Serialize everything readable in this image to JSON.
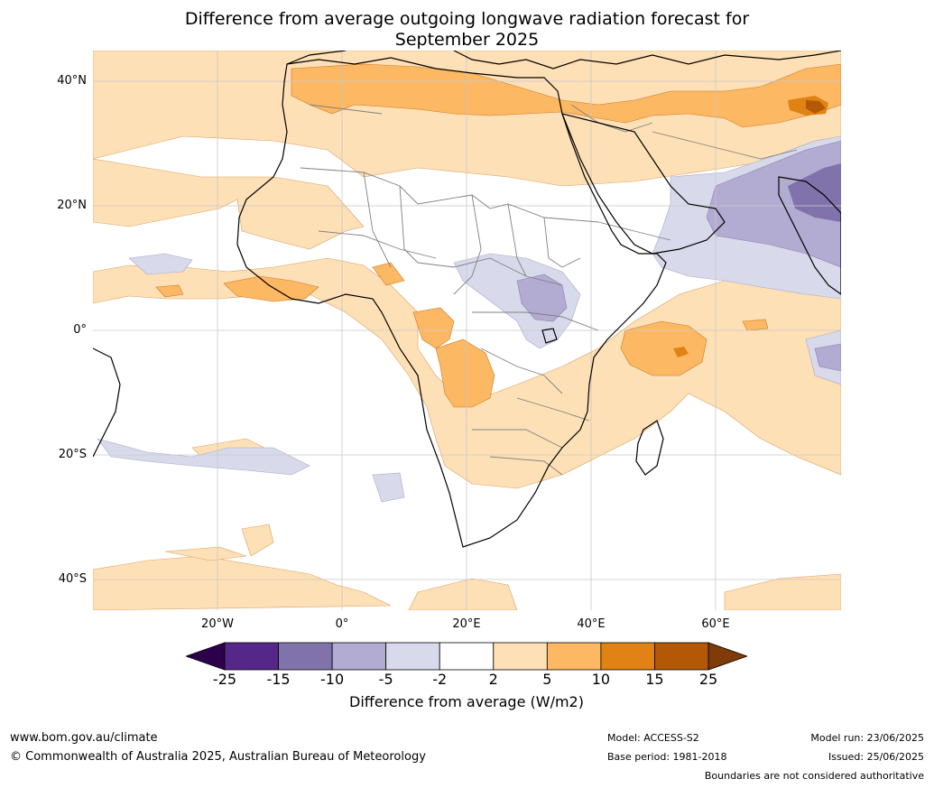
{
  "title_line1": "Difference from average outgoing longwave radiation forecast for",
  "title_line2": "September 2025",
  "map": {
    "lat_labels": [
      "40°N",
      "20°N",
      "0°",
      "20°S",
      "40°S"
    ],
    "lon_labels": [
      "20°W",
      "0°",
      "20°E",
      "40°E",
      "60°E"
    ],
    "colors": {
      "ocean": "#ffffff",
      "near_zero": "#ffffff",
      "pos_2_5": "#fee0b6",
      "pos_5_10": "#fdb863",
      "pos_10_15": "#e08214",
      "pos_15_25": "#b35806",
      "neg_2_5": "#d8daeb",
      "neg_5_10": "#b2abd2",
      "neg_10_15": "#8073ac",
      "coast": "#000000",
      "borders": "#808080",
      "grid": "#c8c8c8"
    }
  },
  "colorbar": {
    "ticks": [
      "-25",
      "-15",
      "-10",
      "-5",
      "-2",
      "2",
      "5",
      "10",
      "15",
      "25"
    ],
    "colors": [
      "#542788",
      "#8073ac",
      "#b2abd2",
      "#d8daeb",
      "#ffffff",
      "#fee0b6",
      "#fdb863",
      "#e08214",
      "#b35806"
    ],
    "under_color": "#2d004b",
    "over_color": "#7f3b08",
    "label": "Difference from average (W/m2)"
  },
  "footer": {
    "website": "www.bom.gov.au/climate",
    "copyright": "© Commonwealth of Australia 2025, Australian Bureau of Meteorology",
    "model": "Model: ACCESS-S2",
    "base_period": "Base period: 1981-2018",
    "model_run": "Model run: 23/06/2025",
    "issued": "Issued: 25/06/2025",
    "disclaimer": "Boundaries are not considered authoritative"
  }
}
